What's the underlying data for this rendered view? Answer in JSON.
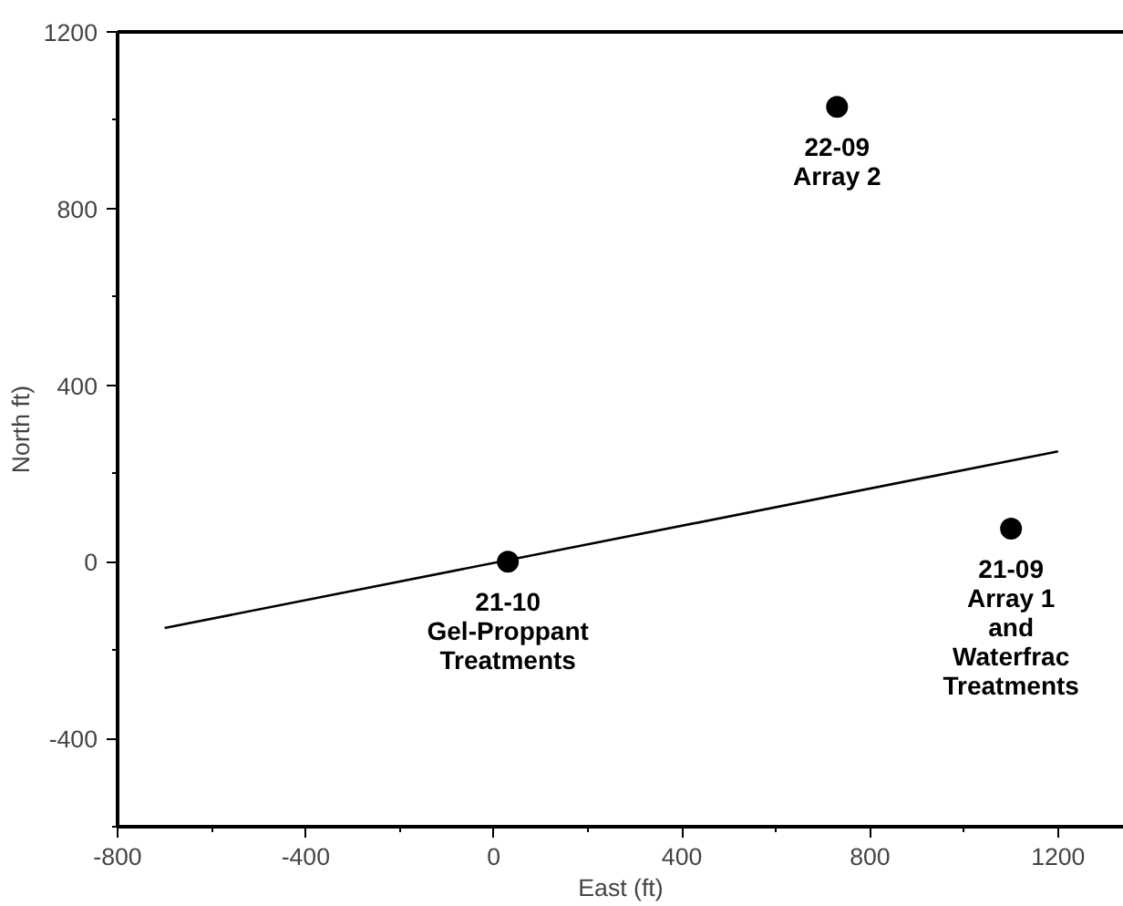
{
  "chart_data": {
    "type": "scatter",
    "xlabel": "East (ft)",
    "ylabel": "North ft)",
    "xlim": [
      -800,
      1340
    ],
    "ylim": [
      -600,
      1200
    ],
    "xticks": [
      -800,
      -400,
      0,
      400,
      800,
      1200
    ],
    "yticks": [
      -400,
      0,
      400,
      800,
      1200
    ],
    "grid": false,
    "marker": "circle",
    "series": [
      {
        "color": "#000000",
        "x": [
          30,
          730,
          1100
        ],
        "values": [
          0,
          1030,
          75
        ]
      },
      {
        "type": "line",
        "color": "#000000",
        "x": [
          -700,
          1200
        ],
        "values": [
          -150,
          250
        ],
        "marker": "none",
        "line_style": "solid"
      }
    ],
    "annotations": [
      {
        "text": "21-10\nGel-Proppant\nTreatments",
        "x": 30,
        "y": 0
      },
      {
        "text": "22-09\nArray 2",
        "x": 730,
        "y": 1030
      },
      {
        "text": "21-09\nArray 1\nand\nWaterfrac\nTreatments",
        "x": 1100,
        "y": 75
      }
    ]
  }
}
